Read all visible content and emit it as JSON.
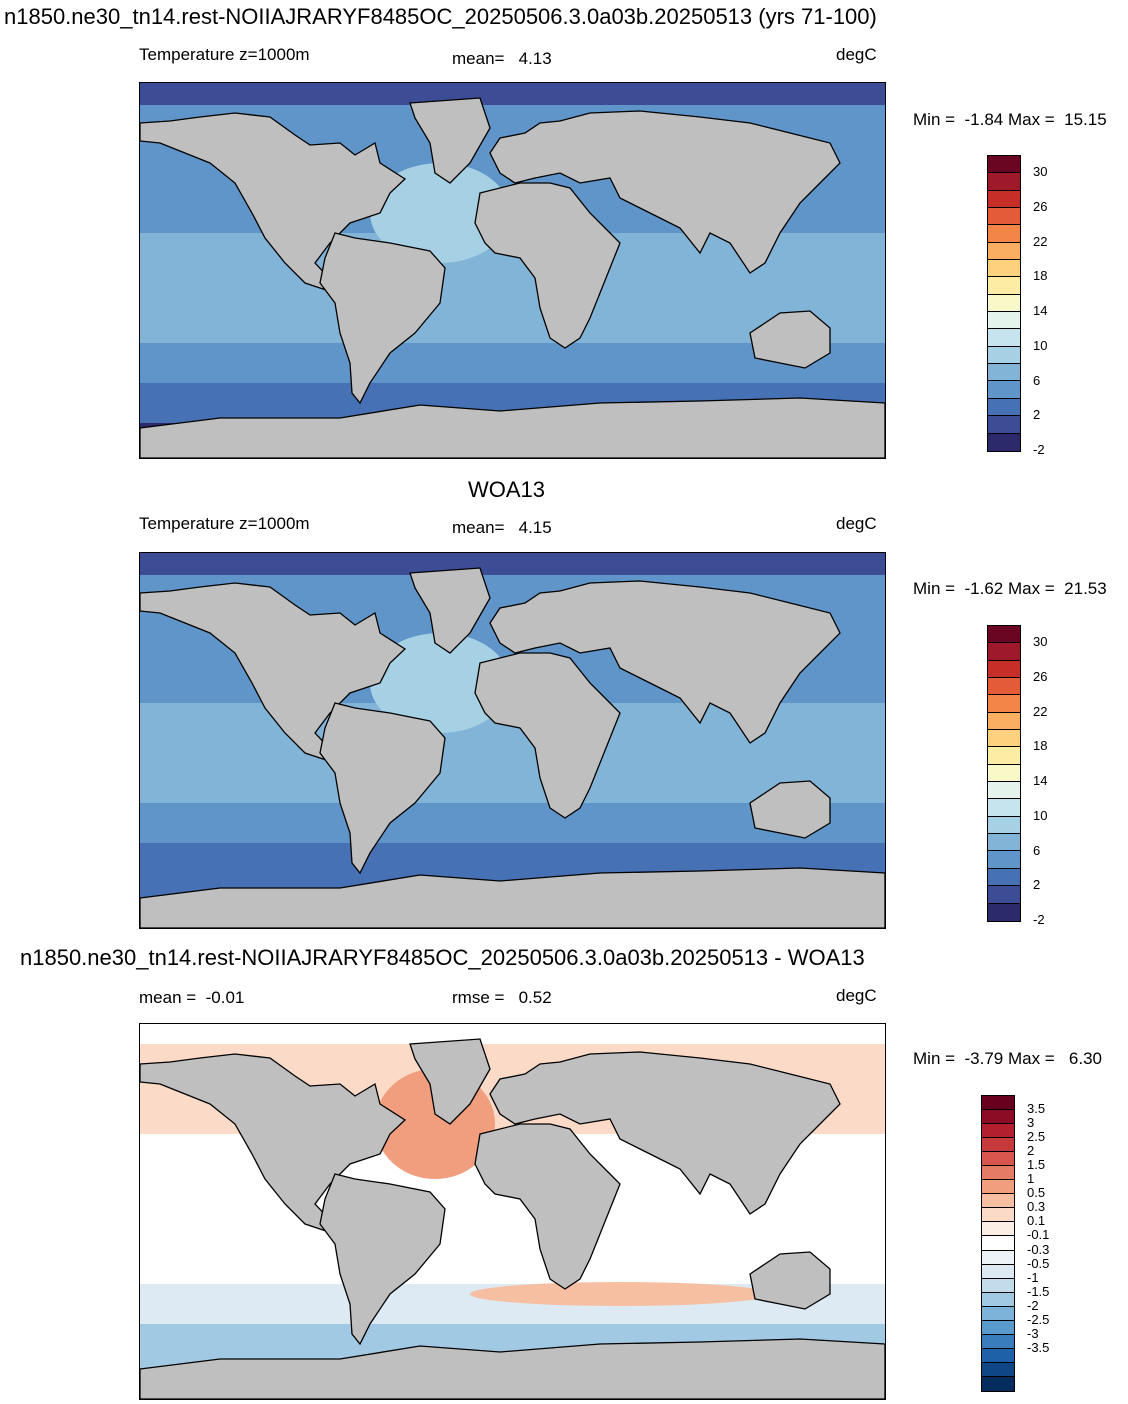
{
  "panels": [
    {
      "title": "n1850.ne30_tn14.rest-NOIIAJRARYF8485OC_20250506.3.0a03b.20250513 (yrs 71-100)",
      "left": "Temperature z=1000m",
      "center": "mean=   4.13",
      "right": "degC",
      "minmax": "Min =  -1.84 Max =  15.15",
      "colorbar": {
        "colors": [
          "#2d2a6b",
          "#3c4d96",
          "#4671b5",
          "#5f95c8",
          "#82b4d8",
          "#a6d0e4",
          "#c6e4ee",
          "#e4f4ec",
          "#f8f8c9",
          "#fdeca3",
          "#fdd17e",
          "#f9ae61",
          "#f38646",
          "#e35b37",
          "#c52f28",
          "#9e1a2a",
          "#6a0622"
        ],
        "labels": [
          "30",
          "26",
          "22",
          "18",
          "14",
          "10",
          "6",
          "2",
          "-2"
        ]
      }
    },
    {
      "title": "WOA13",
      "left": "Temperature z=1000m",
      "center": "mean=   4.15",
      "right": "degC",
      "minmax": "Min =  -1.62 Max =  21.53",
      "colorbar": {
        "colors": [
          "#2d2a6b",
          "#3c4d96",
          "#4671b5",
          "#5f95c8",
          "#82b4d8",
          "#a6d0e4",
          "#c6e4ee",
          "#e4f4ec",
          "#f8f8c9",
          "#fdeca3",
          "#fdd17e",
          "#f9ae61",
          "#f38646",
          "#e35b37",
          "#c52f28",
          "#9e1a2a",
          "#6a0622"
        ],
        "labels": [
          "30",
          "26",
          "22",
          "18",
          "14",
          "10",
          "6",
          "2",
          "-2"
        ]
      }
    },
    {
      "title": "n1850.ne30_tn14.rest-NOIIAJRARYF8485OC_20250506.3.0a03b.20250513 - WOA13",
      "left": "mean =  -0.01",
      "center": "rmse =   0.52",
      "right": "degC",
      "minmax": "Min =  -3.79 Max =   6.30",
      "colorbar": {
        "colors": [
          "#062c5d",
          "#0e4686",
          "#1f61a8",
          "#3a7dbd",
          "#5a9bcd",
          "#7db3d9",
          "#a1c9e4",
          "#c3dcec",
          "#dde9f3",
          "#eef3f8",
          "#ffffff",
          "#fdeee5",
          "#fbdac7",
          "#f6bfa2",
          "#f09e7e",
          "#e57b64",
          "#d9564f",
          "#c73a3c",
          "#b21f2e",
          "#8c0b25",
          "#67001f"
        ],
        "labels": [
          "3.5",
          "3",
          "2.5",
          "2",
          "1.5",
          "1",
          "0.5",
          "0.3",
          "0.1",
          "-0.1",
          "-0.3",
          "-0.5",
          "-1",
          "-1.5",
          "-2",
          "-2.5",
          "-3",
          "-3.5"
        ]
      }
    }
  ]
}
